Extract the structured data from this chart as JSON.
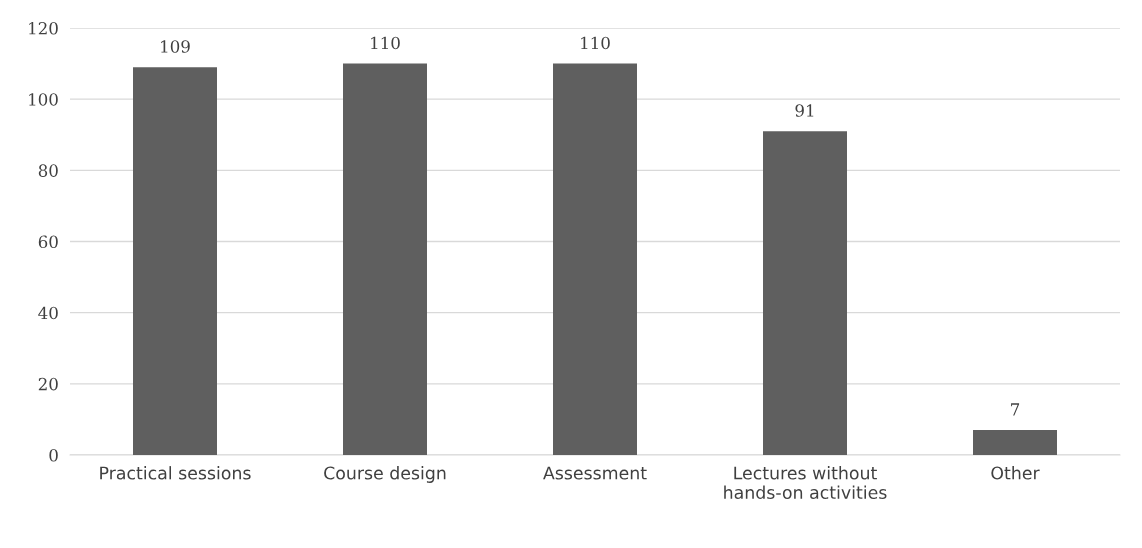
{
  "chart_data": {
    "type": "bar",
    "categories": [
      "Practical sessions",
      "Course design",
      "Assessment",
      "Lectures without\nhands-on activities",
      "Other"
    ],
    "values": [
      109,
      110,
      110,
      91,
      7
    ],
    "color": "#5f5f5f",
    "ylim": [
      0,
      120
    ],
    "yticks": [
      0,
      20,
      40,
      60,
      80,
      100,
      120
    ],
    "grid": "y",
    "data_labels": true
  }
}
